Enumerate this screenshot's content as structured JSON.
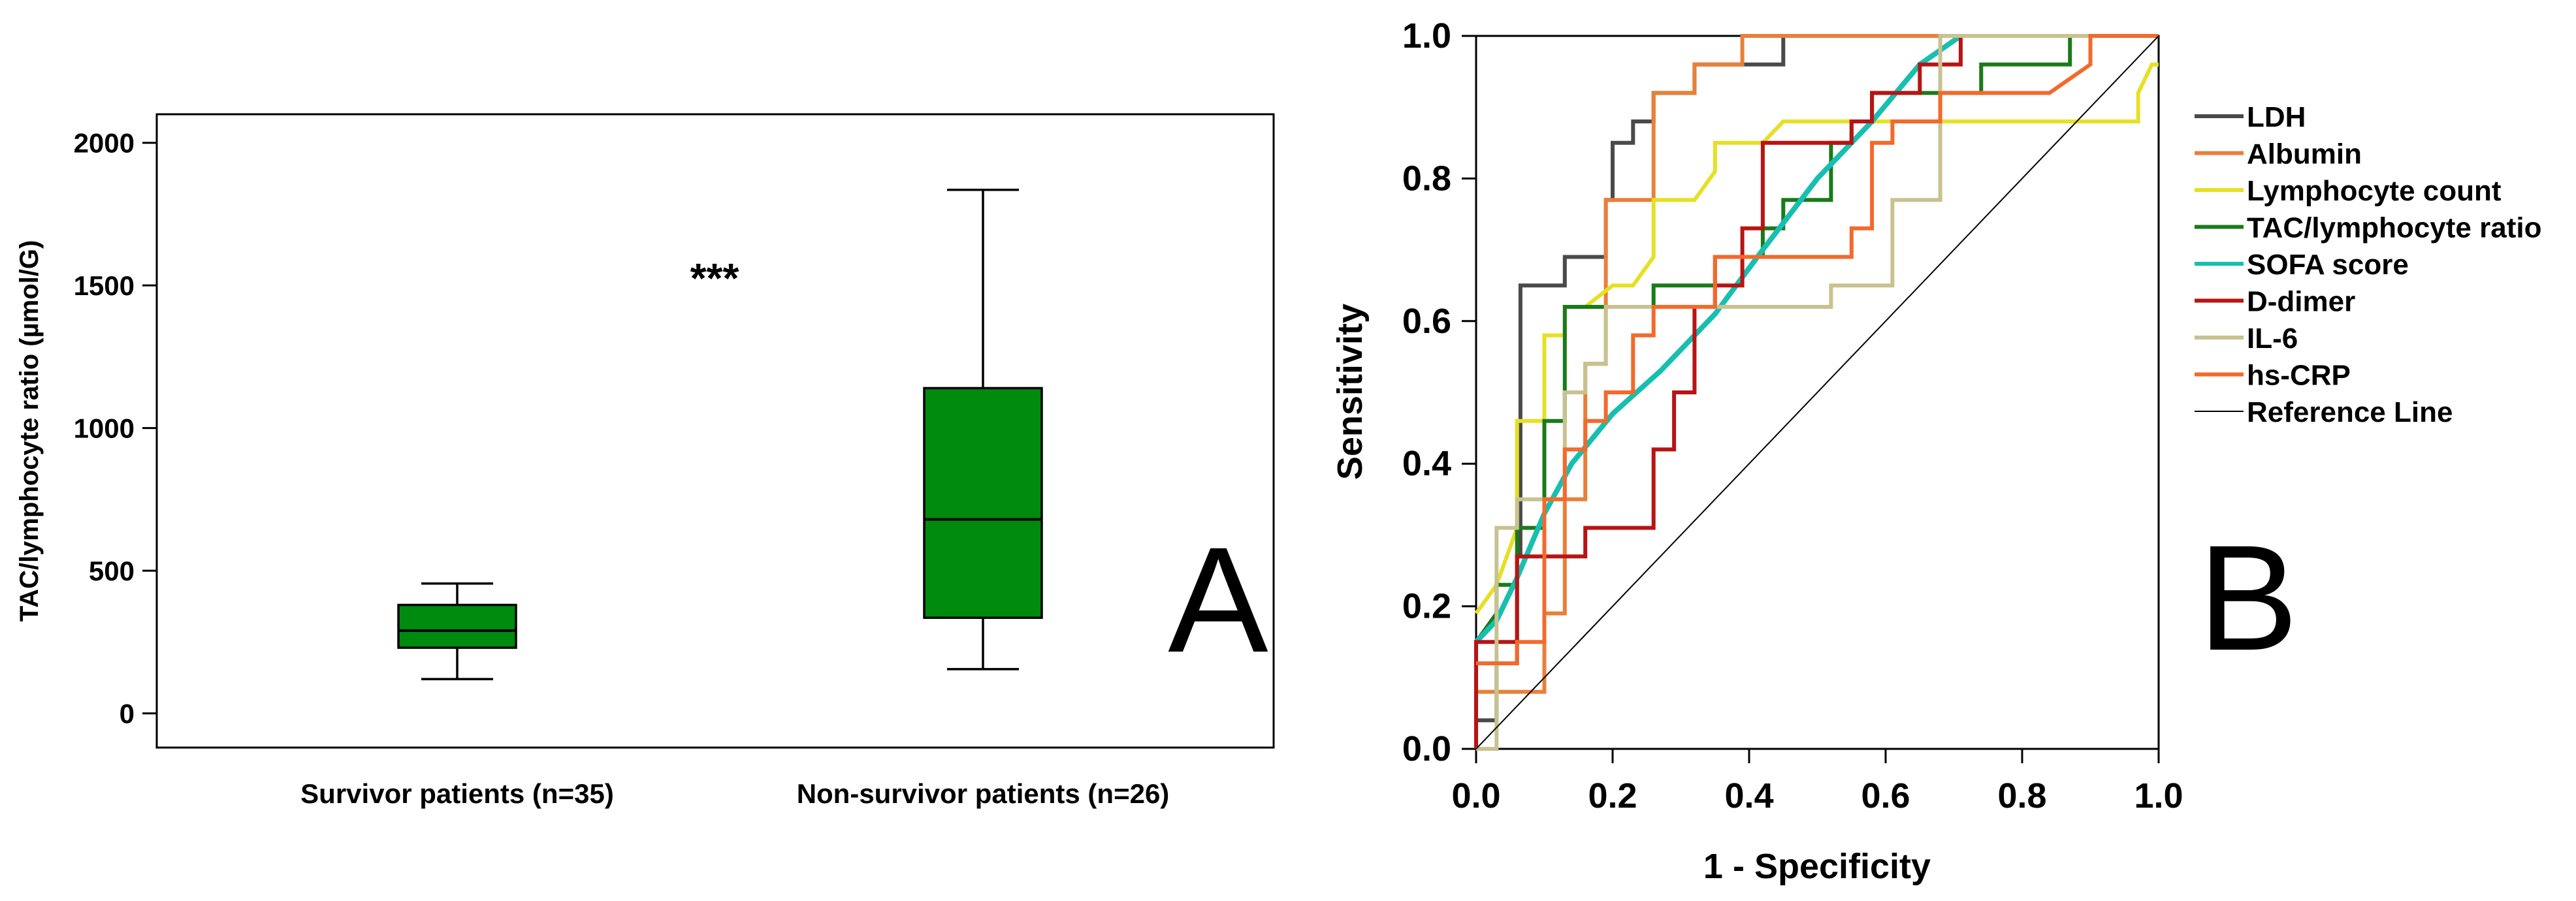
{
  "chart_data": [
    {
      "type": "box",
      "panel_label": "A",
      "ylabel": "TAC/lymphocyte ratio (µmol/G)",
      "ylim": [
        -120,
        2100
      ],
      "yticks": [
        0,
        500,
        1000,
        1500,
        2000
      ],
      "ytick_labels": [
        "0",
        "500",
        "1000",
        "1500",
        "2000"
      ],
      "box_color": "#008a0e",
      "annotation": "***",
      "groups": [
        {
          "label": "Survivor patients (n=35)",
          "min": 120,
          "q1": 230,
          "median": 290,
          "q3": 380,
          "max": 455
        },
        {
          "label": "Non-survivor patients (n=26)",
          "min": 155,
          "q1": 335,
          "median": 680,
          "q3": 1140,
          "max": 1835
        }
      ]
    },
    {
      "type": "line",
      "panel_label": "B",
      "xlabel": "1 - Specificity",
      "ylabel": "Sensitivity",
      "xlim": [
        0,
        1
      ],
      "ylim": [
        0,
        1
      ],
      "ticks": [
        0,
        0.2,
        0.4,
        0.6,
        0.8,
        1
      ],
      "tick_labels": [
        "0.0",
        "0.2",
        "0.4",
        "0.6",
        "0.8",
        "1.0"
      ],
      "legend_position": "right",
      "series": [
        {
          "name": "LDH",
          "color": "#4a4a4a",
          "width": 6,
          "points": [
            [
              0,
              0
            ],
            [
              0,
              0.04
            ],
            [
              0.03,
              0.04
            ],
            [
              0.03,
              0.12
            ],
            [
              0.06,
              0.12
            ],
            [
              0.06,
              0.27
            ],
            [
              0.065,
              0.27
            ],
            [
              0.065,
              0.46
            ],
            [
              0.065,
              0.65
            ],
            [
              0.13,
              0.65
            ],
            [
              0.13,
              0.69
            ],
            [
              0.19,
              0.69
            ],
            [
              0.19,
              0.77
            ],
            [
              0.2,
              0.77
            ],
            [
              0.2,
              0.85
            ],
            [
              0.23,
              0.85
            ],
            [
              0.23,
              0.88
            ],
            [
              0.26,
              0.88
            ],
            [
              0.26,
              0.92
            ],
            [
              0.29,
              0.92
            ],
            [
              0.32,
              0.92
            ],
            [
              0.32,
              0.96
            ],
            [
              0.35,
              0.96
            ],
            [
              0.45,
              0.96
            ],
            [
              0.45,
              1
            ],
            [
              1,
              1
            ]
          ]
        },
        {
          "name": "Albumin",
          "color": "#e8803a",
          "width": 6,
          "points": [
            [
              0,
              0
            ],
            [
              0,
              0.08
            ],
            [
              0.1,
              0.08
            ],
            [
              0.1,
              0.19
            ],
            [
              0.13,
              0.19
            ],
            [
              0.13,
              0.35
            ],
            [
              0.16,
              0.35
            ],
            [
              0.16,
              0.54
            ],
            [
              0.19,
              0.54
            ],
            [
              0.19,
              0.77
            ],
            [
              0.26,
              0.77
            ],
            [
              0.26,
              0.92
            ],
            [
              0.32,
              0.92
            ],
            [
              0.32,
              0.96
            ],
            [
              0.39,
              0.96
            ],
            [
              0.39,
              1
            ],
            [
              1,
              1
            ]
          ]
        },
        {
          "name": "Lymphocyte count",
          "color": "#e6e026",
          "width": 6,
          "points": [
            [
              0,
              0.19
            ],
            [
              0.03,
              0.23
            ],
            [
              0.06,
              0.31
            ],
            [
              0.06,
              0.46
            ],
            [
              0.1,
              0.46
            ],
            [
              0.1,
              0.58
            ],
            [
              0.13,
              0.58
            ],
            [
              0.13,
              0.62
            ],
            [
              0.16,
              0.62
            ],
            [
              0.2,
              0.65
            ],
            [
              0.23,
              0.65
            ],
            [
              0.26,
              0.69
            ],
            [
              0.26,
              0.77
            ],
            [
              0.32,
              0.77
            ],
            [
              0.35,
              0.81
            ],
            [
              0.35,
              0.85
            ],
            [
              0.42,
              0.85
            ],
            [
              0.45,
              0.88
            ],
            [
              0.52,
              0.88
            ],
            [
              0.61,
              0.88
            ],
            [
              0.64,
              0.88
            ],
            [
              0.9,
              0.88
            ],
            [
              0.97,
              0.88
            ],
            [
              0.97,
              0.92
            ],
            [
              0.99,
              0.96
            ],
            [
              1,
              0.96
            ]
          ]
        },
        {
          "name": "TAC/lymphocyte ratio",
          "color": "#1a7a1a",
          "width": 6,
          "points": [
            [
              0,
              0.15
            ],
            [
              0.03,
              0.19
            ],
            [
              0.03,
              0.23
            ],
            [
              0.06,
              0.23
            ],
            [
              0.06,
              0.31
            ],
            [
              0.1,
              0.31
            ],
            [
              0.1,
              0.42
            ],
            [
              0.1,
              0.46
            ],
            [
              0.13,
              0.46
            ],
            [
              0.13,
              0.5
            ],
            [
              0.13,
              0.62
            ],
            [
              0.19,
              0.62
            ],
            [
              0.26,
              0.62
            ],
            [
              0.26,
              0.65
            ],
            [
              0.32,
              0.65
            ],
            [
              0.35,
              0.65
            ],
            [
              0.35,
              0.69
            ],
            [
              0.42,
              0.69
            ],
            [
              0.42,
              0.73
            ],
            [
              0.45,
              0.73
            ],
            [
              0.45,
              0.77
            ],
            [
              0.52,
              0.77
            ],
            [
              0.52,
              0.85
            ],
            [
              0.55,
              0.85
            ],
            [
              0.55,
              0.88
            ],
            [
              0.58,
              0.88
            ],
            [
              0.58,
              0.92
            ],
            [
              0.74,
              0.92
            ],
            [
              0.74,
              0.96
            ],
            [
              0.87,
              0.96
            ],
            [
              0.87,
              1
            ],
            [
              1,
              1
            ]
          ]
        },
        {
          "name": "SOFA score",
          "color": "#17bfb0",
          "width": 8,
          "points": [
            [
              0,
              0.15
            ],
            [
              0.03,
              0.18
            ],
            [
              0.06,
              0.24
            ],
            [
              0.1,
              0.33
            ],
            [
              0.14,
              0.4
            ],
            [
              0.2,
              0.47
            ],
            [
              0.27,
              0.53
            ],
            [
              0.35,
              0.61
            ],
            [
              0.42,
              0.7
            ],
            [
              0.5,
              0.8
            ],
            [
              0.58,
              0.88
            ],
            [
              0.65,
              0.96
            ],
            [
              0.71,
              1.0
            ]
          ]
        },
        {
          "name": "D-dimer",
          "color": "#b81414",
          "width": 6,
          "points": [
            [
              0,
              0
            ],
            [
              0,
              0.12
            ],
            [
              0,
              0.15
            ],
            [
              0.06,
              0.15
            ],
            [
              0.06,
              0.27
            ],
            [
              0.16,
              0.27
            ],
            [
              0.16,
              0.31
            ],
            [
              0.26,
              0.31
            ],
            [
              0.26,
              0.42
            ],
            [
              0.29,
              0.42
            ],
            [
              0.29,
              0.5
            ],
            [
              0.32,
              0.5
            ],
            [
              0.32,
              0.62
            ],
            [
              0.35,
              0.62
            ],
            [
              0.35,
              0.65
            ],
            [
              0.39,
              0.65
            ],
            [
              0.39,
              0.73
            ],
            [
              0.42,
              0.73
            ],
            [
              0.42,
              0.85
            ],
            [
              0.55,
              0.85
            ],
            [
              0.55,
              0.88
            ],
            [
              0.58,
              0.88
            ],
            [
              0.58,
              0.92
            ],
            [
              0.65,
              0.92
            ],
            [
              0.65,
              0.96
            ],
            [
              0.71,
              0.96
            ],
            [
              0.71,
              1
            ],
            [
              1,
              1
            ]
          ]
        },
        {
          "name": "IL-6",
          "color": "#c8c290",
          "width": 6,
          "points": [
            [
              0,
              0
            ],
            [
              0.03,
              0
            ],
            [
              0.03,
              0.31
            ],
            [
              0.06,
              0.31
            ],
            [
              0.06,
              0.35
            ],
            [
              0.13,
              0.35
            ],
            [
              0.13,
              0.5
            ],
            [
              0.16,
              0.5
            ],
            [
              0.16,
              0.54
            ],
            [
              0.19,
              0.54
            ],
            [
              0.19,
              0.62
            ],
            [
              0.48,
              0.62
            ],
            [
              0.52,
              0.62
            ],
            [
              0.52,
              0.65
            ],
            [
              0.61,
              0.65
            ],
            [
              0.61,
              0.77
            ],
            [
              0.68,
              0.77
            ],
            [
              0.68,
              1
            ],
            [
              1,
              1
            ]
          ]
        },
        {
          "name": "hs-CRP",
          "color": "#f26a2c",
          "width": 6,
          "points": [
            [
              0,
              0.12
            ],
            [
              0.06,
              0.12
            ],
            [
              0.06,
              0.15
            ],
            [
              0.1,
              0.15
            ],
            [
              0.1,
              0.23
            ],
            [
              0.1,
              0.35
            ],
            [
              0.13,
              0.35
            ],
            [
              0.13,
              0.42
            ],
            [
              0.16,
              0.42
            ],
            [
              0.16,
              0.46
            ],
            [
              0.19,
              0.46
            ],
            [
              0.19,
              0.5
            ],
            [
              0.23,
              0.5
            ],
            [
              0.23,
              0.58
            ],
            [
              0.26,
              0.58
            ],
            [
              0.26,
              0.62
            ],
            [
              0.35,
              0.62
            ],
            [
              0.35,
              0.69
            ],
            [
              0.55,
              0.69
            ],
            [
              0.55,
              0.73
            ],
            [
              0.58,
              0.73
            ],
            [
              0.58,
              0.85
            ],
            [
              0.61,
              0.85
            ],
            [
              0.61,
              0.88
            ],
            [
              0.68,
              0.88
            ],
            [
              0.68,
              0.92
            ],
            [
              0.84,
              0.92
            ],
            [
              0.9,
              0.96
            ],
            [
              0.9,
              1
            ],
            [
              1,
              1
            ]
          ]
        },
        {
          "name": "Reference Line",
          "color": "#000000",
          "width": 2,
          "points": [
            [
              0,
              0
            ],
            [
              1,
              1
            ]
          ]
        }
      ]
    }
  ]
}
